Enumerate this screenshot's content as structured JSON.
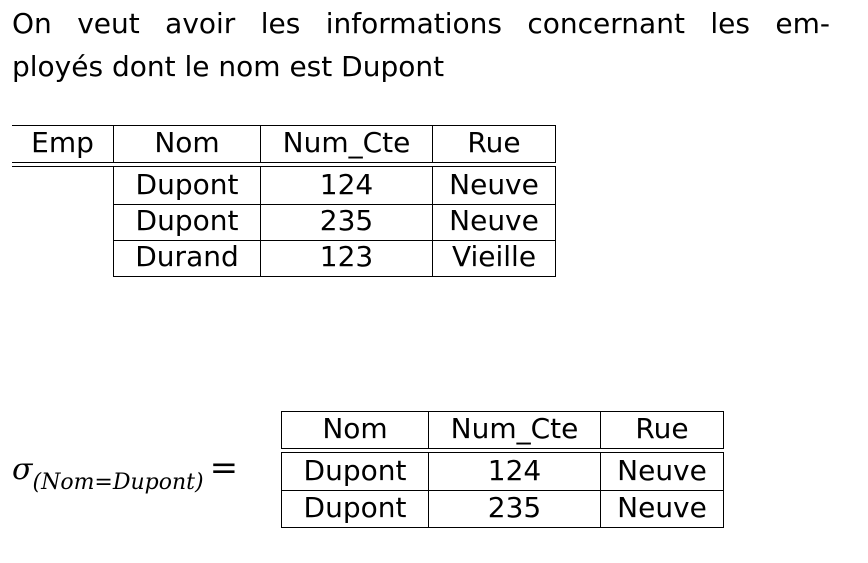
{
  "intro": {
    "line1": "On veut avoir les informations concernant les em-",
    "line2": "ployés dont le nom est Dupont"
  },
  "table1": {
    "headers": [
      "Emp",
      "Nom",
      "Num_Cte",
      "Rue"
    ],
    "rows": [
      [
        "Dupont",
        "124",
        "Neuve"
      ],
      [
        "Dupont",
        "235",
        "Neuve"
      ],
      [
        "Durand",
        "123",
        "Vieille"
      ]
    ]
  },
  "selection": {
    "sigma": "σ",
    "subscript": "(Nom=Dupont)",
    "equals": "="
  },
  "table2": {
    "headers": [
      "Nom",
      "Num_Cte",
      "Rue"
    ],
    "rows": [
      [
        "Dupont",
        "124",
        "Neuve"
      ],
      [
        "Dupont",
        "235",
        "Neuve"
      ]
    ]
  }
}
